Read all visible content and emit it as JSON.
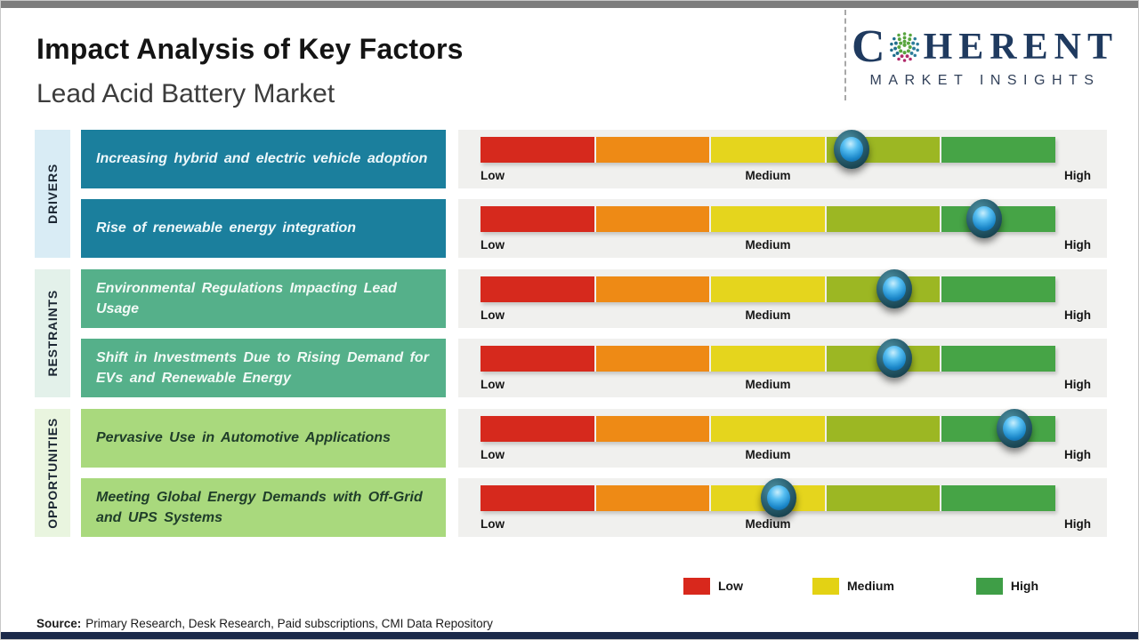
{
  "header": {
    "title": "Impact Analysis of Key Factors",
    "subtitle": "Lead Acid Battery Market"
  },
  "logo": {
    "name_part1": "C",
    "name_part2": "HERENT",
    "tagline": "MARKET INSIGHTS",
    "brand_color": "#1f3a5f"
  },
  "groups": [
    {
      "label": "DRIVERS"
    },
    {
      "label": "RESTRAINTS"
    },
    {
      "label": "OPPORTUNITIES"
    }
  ],
  "rows": [
    {
      "group": "Drivers",
      "factor": "Increasing hybrid and electric vehicle adoption",
      "marker_pos": 64.6,
      "rating": "Medium-High"
    },
    {
      "group": "Drivers",
      "factor": "Rise of renewable energy integration",
      "marker_pos": 87.6,
      "rating": "High"
    },
    {
      "group": "Restraints",
      "factor": "Environmental Regulations Impacting Lead Usage",
      "marker_pos": 72.0,
      "rating": "Medium-High"
    },
    {
      "group": "Restraints",
      "factor": "Shift in Investments Due to Rising Demand for EVs and Renewable Energy",
      "marker_pos": 72.0,
      "rating": "Medium-High"
    },
    {
      "group": "Opportunities",
      "factor": "Pervasive Use in Automotive Applications",
      "marker_pos": 92.9,
      "rating": "High"
    },
    {
      "group": "Opportunities",
      "factor": "Meeting Global Energy Demands with Off-Grid and UPS Systems",
      "marker_pos": 51.8,
      "rating": "Medium"
    }
  ],
  "scale": {
    "low_label": "Low",
    "medium_label": "Medium",
    "high_label": "High",
    "segment_colors": [
      "#d6291d",
      "#ee8a15",
      "#e5d51d",
      "#9cb723",
      "#46a446"
    ]
  },
  "legend": {
    "items": [
      {
        "label": "Low",
        "color": "#d8281c"
      },
      {
        "label": "Medium",
        "color": "#e3d214"
      },
      {
        "label": "High",
        "color": "#3f9e47"
      }
    ]
  },
  "source": {
    "label": "Source:",
    "text": "Primary Research, Desk Research, Paid subscriptions, CMI Data Repository"
  },
  "colors": {
    "driver_box": "#1b7f9d",
    "restraint_box": "#55b08a",
    "opportunity_box": "#a9d97d",
    "driver_rail": "#d9ecf5",
    "restraint_rail": "#e3f1ea",
    "opportunity_rail": "#e9f5df",
    "panel_background": "#f0f0ee",
    "marker_blue": "#1b87c9",
    "top_bar": "#7d7d7d",
    "bottom_bar": "#1b2a4a"
  },
  "chart_data": {
    "type": "bar",
    "title": "Impact Analysis of Key Factors",
    "subtitle": "Lead Acid Battery Market",
    "categories": [
      "Increasing hybrid and electric vehicle adoption",
      "Rise of renewable energy integration",
      "Environmental Regulations Impacting Lead Usage",
      "Shift in Investments Due to Rising Demand for EVs and Renewable Energy",
      "Pervasive Use in Automotive Applications",
      "Meeting Global Energy Demands with Off-Grid and UPS Systems"
    ],
    "groups": [
      "Drivers",
      "Drivers",
      "Restraints",
      "Restraints",
      "Opportunities",
      "Opportunities"
    ],
    "values": [
      64.6,
      87.6,
      72.0,
      72.0,
      92.9,
      51.8
    ],
    "value_axis": {
      "min": 0,
      "max": 100,
      "tick_labels": [
        "Low",
        "Medium",
        "High"
      ]
    },
    "ratings": [
      "Medium-High",
      "High",
      "Medium-High",
      "Medium-High",
      "High",
      "Medium"
    ],
    "legend": [
      "Low",
      "Medium",
      "High"
    ],
    "legend_position": "bottom",
    "grid": false
  }
}
